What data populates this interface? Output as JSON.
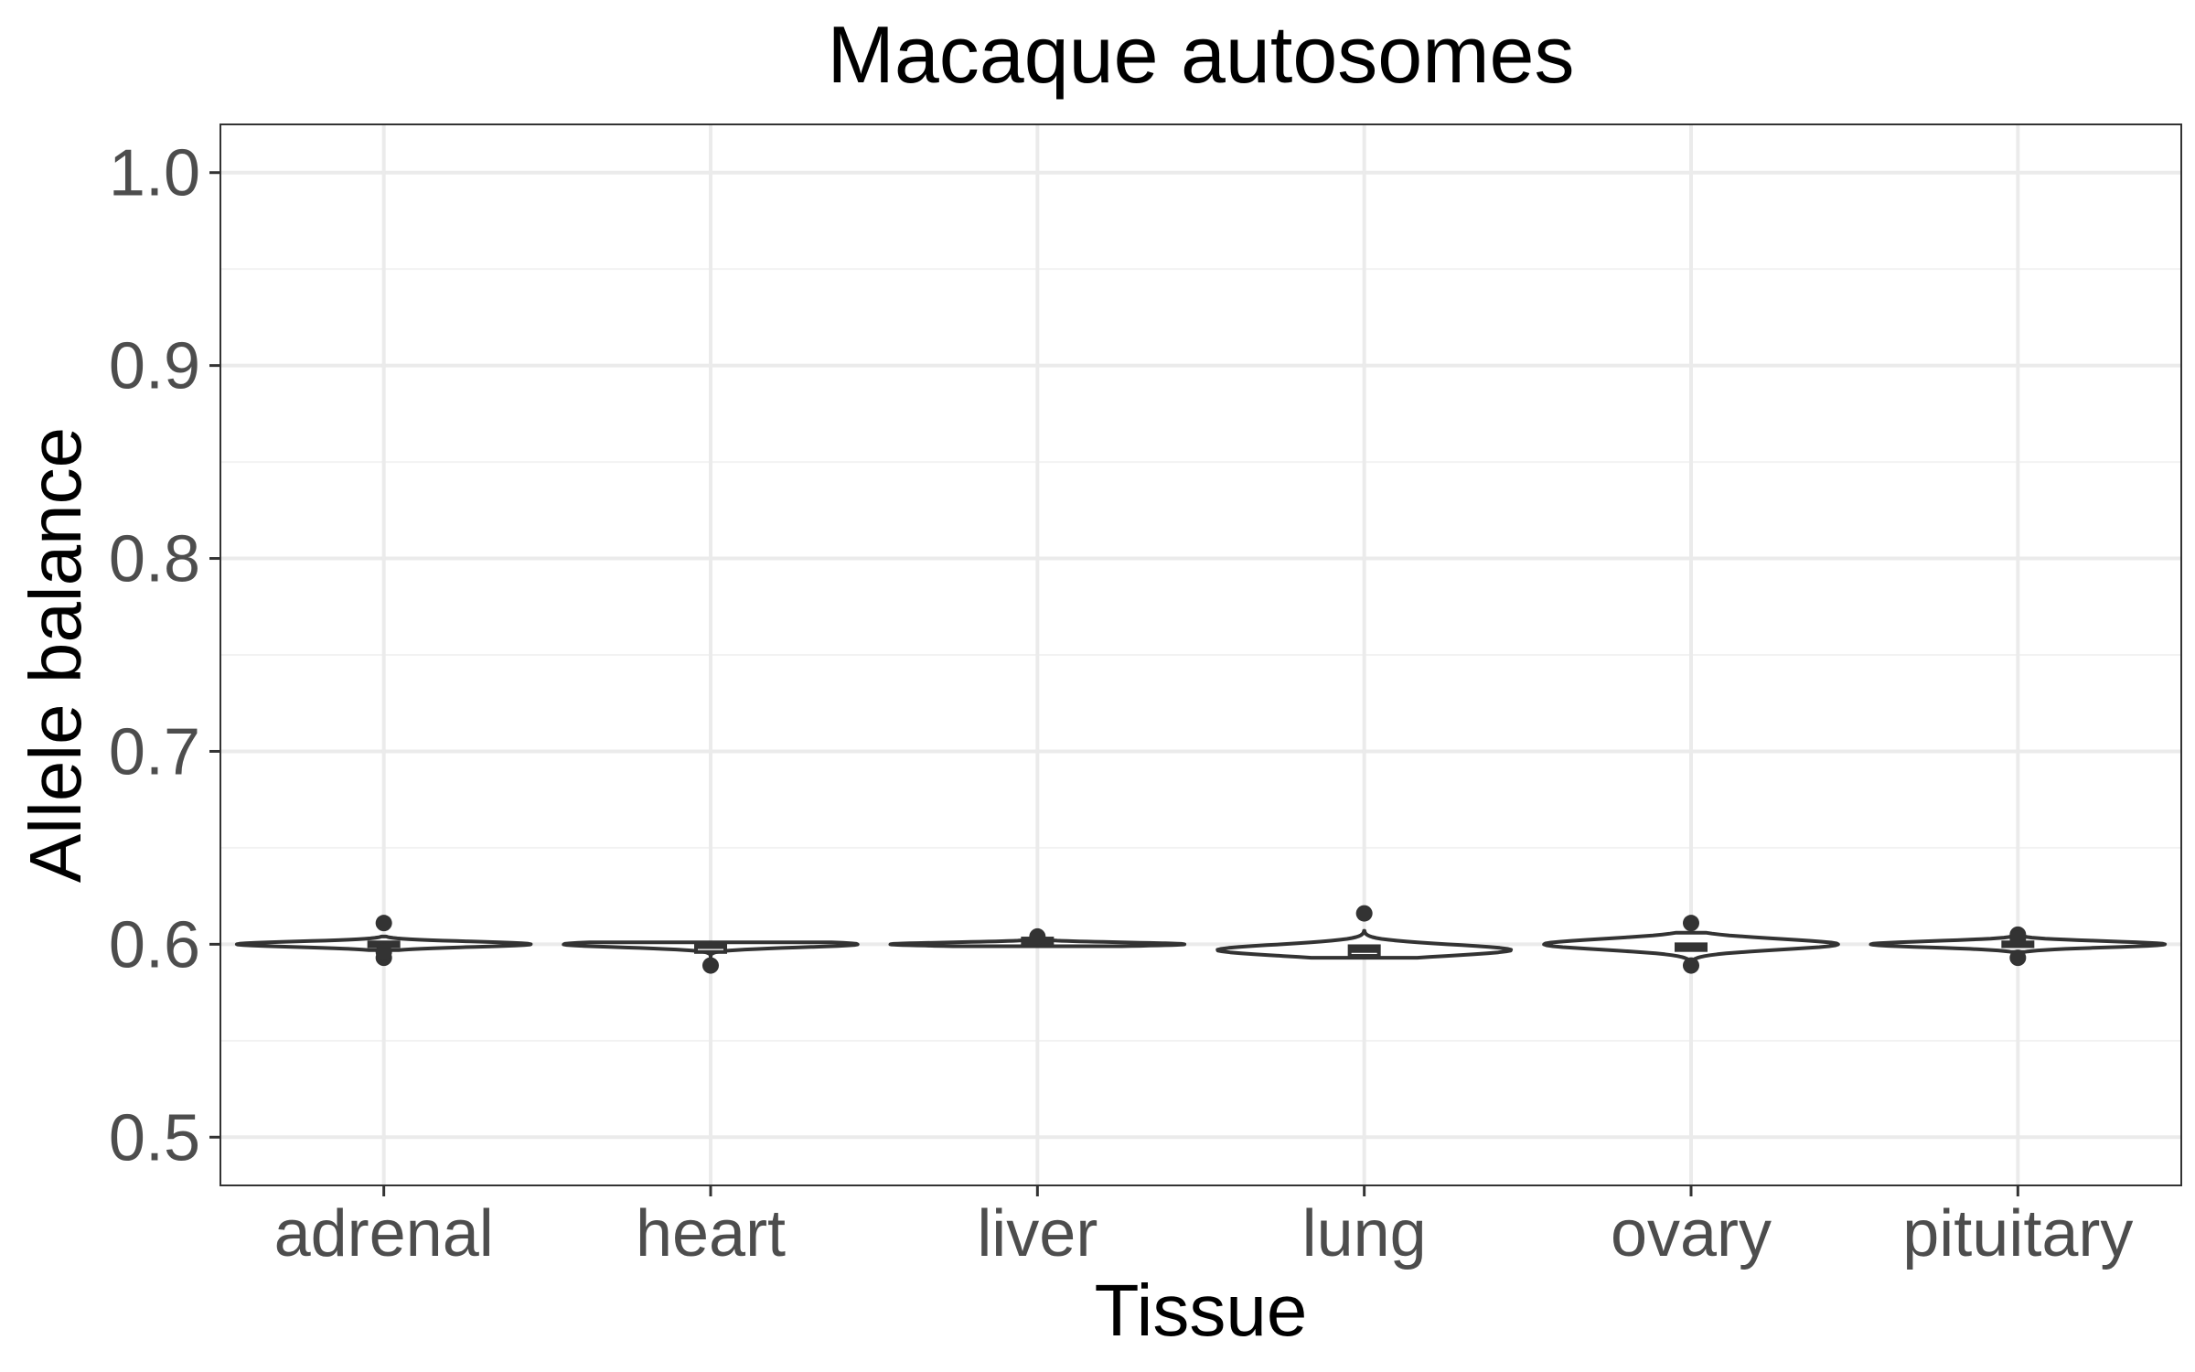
{
  "chart_data": {
    "type": "violin",
    "title": "Macaque autosomes",
    "xlabel": "Tissue",
    "ylabel": "Allele balance",
    "categories": [
      "adrenal",
      "heart",
      "liver",
      "lung",
      "ovary",
      "pituitary"
    ],
    "ylim": [
      0.475,
      1.025
    ],
    "yticks": [
      0.5,
      0.6,
      0.7,
      0.8,
      0.9,
      1.0
    ],
    "ytick_labels": [
      "0.5",
      "0.6",
      "0.7",
      "0.8",
      "0.9",
      "1.0"
    ],
    "grid": true,
    "legend": "none",
    "theme": "bw",
    "series": [
      {
        "category": "adrenal",
        "violin": {
          "min": 0.597,
          "max": 0.604,
          "center": 0.6
        },
        "box": {
          "lower": 0.599,
          "median": 0.6,
          "upper": 0.601
        },
        "outliers": [
          0.611,
          0.593,
          0.596
        ]
      },
      {
        "category": "heart",
        "violin": {
          "min": 0.593,
          "max": 0.601,
          "center": 0.6
        },
        "box": {
          "lower": 0.596,
          "median": 0.599,
          "upper": 0.6
        },
        "outliers": [
          0.589
        ]
      },
      {
        "category": "liver",
        "violin": {
          "min": 0.599,
          "max": 0.602,
          "center": 0.6
        },
        "box": {
          "lower": 0.6,
          "median": 0.601,
          "upper": 0.603
        },
        "outliers": [
          0.604
        ]
      },
      {
        "category": "lung",
        "violin": {
          "min": 0.593,
          "max": 0.607,
          "center": 0.597
        },
        "box": {
          "lower": 0.594,
          "median": 0.597,
          "upper": 0.599
        },
        "outliers": [
          0.616
        ]
      },
      {
        "category": "ovary",
        "violin": {
          "min": 0.592,
          "max": 0.606,
          "center": 0.6
        },
        "box": {
          "lower": 0.597,
          "median": 0.599,
          "upper": 0.6
        },
        "outliers": [
          0.611,
          0.589
        ]
      },
      {
        "category": "pituitary",
        "violin": {
          "min": 0.596,
          "max": 0.604,
          "center": 0.6
        },
        "box": {
          "lower": 0.599,
          "median": 0.6,
          "upper": 0.601
        },
        "outliers": [
          0.605,
          0.603,
          0.593
        ]
      }
    ],
    "colors": {
      "violin_line": "#333333",
      "box_fill": "#ffffff",
      "point": "#333333",
      "grid_major": "#ebebeb",
      "grid_minor": "#f2f2f2",
      "panel_border": "#333333",
      "tick_text": "#4d4d4d",
      "title_text": "#000000"
    }
  }
}
